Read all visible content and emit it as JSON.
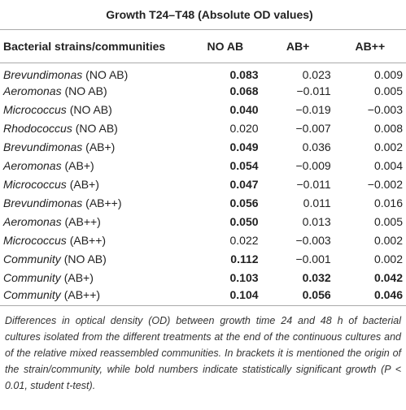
{
  "table": {
    "title": "Growth T24–T48 (Absolute OD values)",
    "header": [
      "Bacterial strains/communities",
      "NO AB",
      "AB+",
      "AB++"
    ],
    "rows": [
      {
        "name": "Brevundimonas",
        "origin": "(NO AB)",
        "cells": [
          "0.083",
          "0.023",
          "0.009"
        ],
        "bold": [
          true,
          false,
          false
        ]
      },
      {
        "name": "Aeromonas",
        "origin": "(NO AB)",
        "cells": [
          "0.068",
          "−0.011",
          "0.005"
        ],
        "bold": [
          true,
          false,
          false
        ]
      },
      {
        "name": "Micrococcus",
        "origin": "(NO AB)",
        "cells": [
          "0.040",
          "−0.019",
          "−0.003"
        ],
        "bold": [
          true,
          false,
          false
        ]
      },
      {
        "name": "Rhodococcus",
        "origin": "(NO AB)",
        "cells": [
          "0.020",
          "−0.007",
          "0.008"
        ],
        "bold": [
          false,
          false,
          false
        ]
      },
      {
        "name": "Brevundimonas",
        "origin": "(AB+)",
        "cells": [
          "0.049",
          "0.036",
          "0.002"
        ],
        "bold": [
          true,
          false,
          false
        ]
      },
      {
        "name": "Aeromonas",
        "origin": "(AB+)",
        "cells": [
          "0.054",
          "−0.009",
          "0.004"
        ],
        "bold": [
          true,
          false,
          false
        ]
      },
      {
        "name": "Micrococcus",
        "origin": "(AB+)",
        "cells": [
          "0.047",
          "−0.011",
          "−0.002"
        ],
        "bold": [
          true,
          false,
          false
        ]
      },
      {
        "name": "Brevundimonas",
        "origin": "(AB++)",
        "cells": [
          "0.056",
          "0.011",
          "0.016"
        ],
        "bold": [
          true,
          false,
          false
        ]
      },
      {
        "name": "Aeromonas",
        "origin": "(AB++)",
        "cells": [
          "0.050",
          "0.013",
          "0.005"
        ],
        "bold": [
          true,
          false,
          false
        ]
      },
      {
        "name": "Micrococcus",
        "origin": "(AB++)",
        "cells": [
          "0.022",
          "−0.003",
          "0.002"
        ],
        "bold": [
          false,
          false,
          false
        ]
      },
      {
        "name": "Community",
        "origin": "(NO AB)",
        "cells": [
          "0.112",
          "−0.001",
          "0.002"
        ],
        "bold": [
          true,
          false,
          false
        ]
      },
      {
        "name": "Community",
        "origin": "(AB+)",
        "cells": [
          "0.103",
          "0.032",
          "0.042"
        ],
        "bold": [
          true,
          true,
          true
        ]
      },
      {
        "name": "Community",
        "origin": "(AB++)",
        "cells": [
          "0.104",
          "0.056",
          "0.046"
        ],
        "bold": [
          true,
          true,
          true
        ]
      }
    ],
    "caption": "Differences in optical density (OD) between growth time 24 and 48 h of bacterial cultures isolated from the different treatments at the end of the continuous cultures and of the relative mixed reassembled communities. In brackets it is mentioned the origin of the strain/community, while bold numbers indicate statistically significant growth (P < 0.01, student t-test)."
  }
}
